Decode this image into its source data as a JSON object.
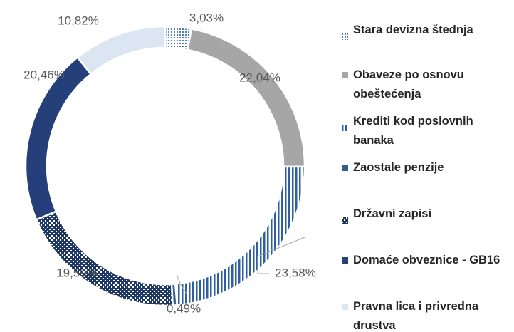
{
  "chart_data": {
    "type": "donut",
    "categories": [
      "Stara devizna štednja",
      "Obaveze po osnovu obeštećenja",
      "Krediti kod poslovnih banaka",
      "Zaostale penzije",
      "Državni zapisi",
      "Domaće obveznice - GB16",
      "Pravna lica i privredna drustva"
    ],
    "values": [
      3.03,
      22.04,
      23.58,
      0.49,
      19.59,
      20.46,
      10.82
    ],
    "value_labels": [
      "3,03%",
      "22,04%",
      "23,58%",
      "0,49%",
      "19,59%",
      "20,46%",
      "10,82%"
    ],
    "colors": [
      "#4f81bd",
      "#a6a6a6",
      "#2e5fa3",
      "#2e6092",
      "#1f3864",
      "#253f7a",
      "#dce6f2"
    ],
    "fill_patterns": [
      "dots",
      "solid",
      "vertical",
      "solid",
      "checker",
      "solid",
      "solid"
    ],
    "legend": "right"
  }
}
